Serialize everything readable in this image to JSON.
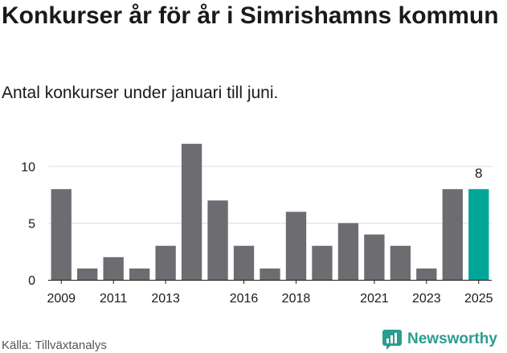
{
  "header": {
    "title": "Konkurser år för år i Simrishamns kommun",
    "subtitle": "Antal konkurser under januari till juni."
  },
  "footer": {
    "source": "Källa: Tillväxtanalys",
    "brand": "Newsworthy"
  },
  "colors": {
    "bar": "#6d6c71",
    "highlight": "#00a698",
    "grid": "#dddddd",
    "brand": "#2a9d8f"
  },
  "chart_data": {
    "type": "bar",
    "title": "Konkurser år för år i Simrishamns kommun",
    "subtitle": "Antal konkurser under januari till juni.",
    "categories": [
      "2009",
      "2010",
      "2011",
      "2012",
      "2013",
      "2014",
      "2015",
      "2016",
      "2017",
      "2018",
      "2019",
      "2020",
      "2021",
      "2022",
      "2023",
      "2024",
      "2025"
    ],
    "values": [
      8,
      1,
      2,
      1,
      3,
      12,
      7,
      3,
      1,
      6,
      3,
      5,
      4,
      3,
      1,
      8,
      8
    ],
    "x_tick_labels": [
      "2009",
      "2011",
      "2013",
      "2016",
      "2018",
      "2021",
      "2023",
      "2025"
    ],
    "y_ticks": [
      0,
      5,
      10
    ],
    "ylim": [
      0,
      12
    ],
    "grid": true,
    "highlight_category": "2025",
    "data_labels": [
      {
        "category": "2025",
        "value": "8"
      }
    ]
  }
}
